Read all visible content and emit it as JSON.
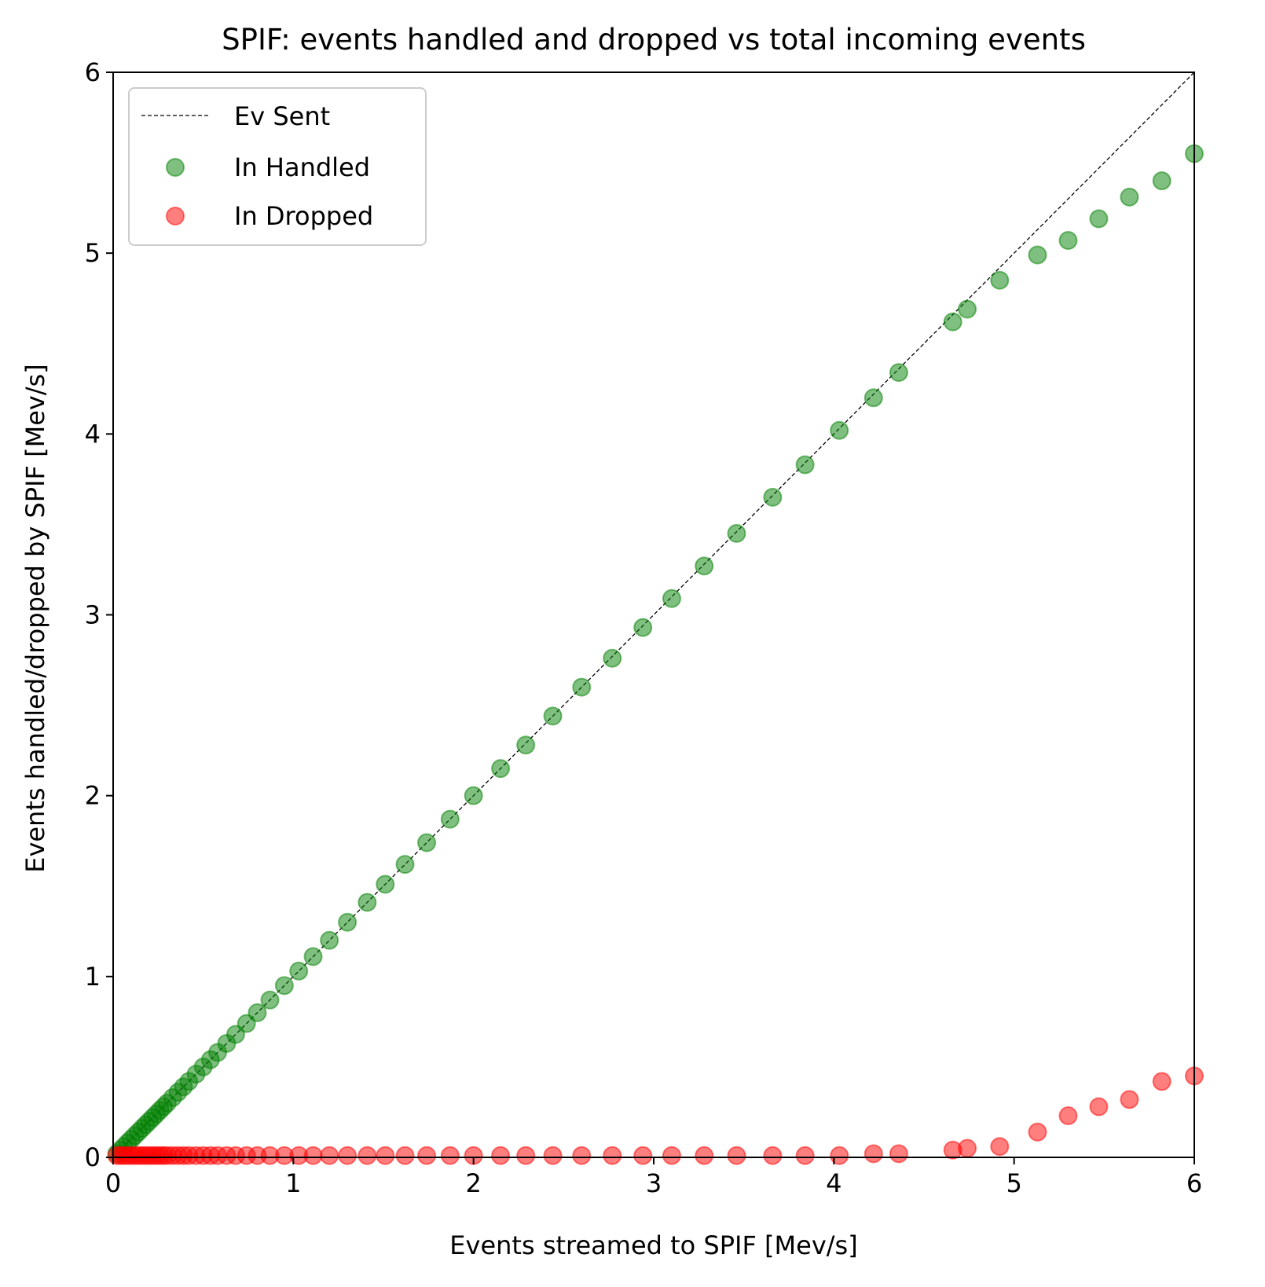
{
  "chart_data": {
    "type": "scatter",
    "title": "SPIF: events handled and dropped vs total incoming events",
    "xlabel": "Events streamed to SPIF [Mev/s]",
    "ylabel": "Events handled/dropped by SPIF [Mev/s]",
    "xlim": [
      0,
      6
    ],
    "ylim": [
      0,
      6
    ],
    "xticks": [
      0,
      1,
      2,
      3,
      4,
      5,
      6
    ],
    "yticks": [
      0,
      1,
      2,
      3,
      4,
      5,
      6
    ],
    "grid": false,
    "legend_position": "upper left",
    "reference_line": {
      "name": "Ev Sent",
      "x": [
        0,
        6
      ],
      "y": [
        0,
        6
      ],
      "style": "dashed",
      "color": "#000000"
    },
    "series": [
      {
        "name": "In Handled",
        "color": "#008000",
        "x": [
          0.02,
          0.04,
          0.06,
          0.08,
          0.1,
          0.12,
          0.14,
          0.16,
          0.18,
          0.2,
          0.22,
          0.24,
          0.26,
          0.28,
          0.3,
          0.33,
          0.36,
          0.39,
          0.42,
          0.46,
          0.5,
          0.54,
          0.58,
          0.63,
          0.68,
          0.74,
          0.8,
          0.87,
          0.95,
          1.03,
          1.11,
          1.2,
          1.3,
          1.41,
          1.51,
          1.62,
          1.74,
          1.87,
          2.0,
          2.15,
          2.29,
          2.44,
          2.6,
          2.77,
          2.94,
          3.1,
          3.28,
          3.46,
          3.66,
          3.84,
          4.03,
          4.22,
          4.36,
          4.66,
          4.74,
          4.92,
          5.13,
          5.3,
          5.47,
          5.64,
          5.82,
          6.0
        ],
        "y": [
          0.02,
          0.04,
          0.06,
          0.08,
          0.1,
          0.12,
          0.14,
          0.16,
          0.18,
          0.2,
          0.22,
          0.24,
          0.26,
          0.28,
          0.3,
          0.33,
          0.36,
          0.39,
          0.42,
          0.46,
          0.5,
          0.54,
          0.58,
          0.63,
          0.68,
          0.74,
          0.8,
          0.87,
          0.95,
          1.03,
          1.11,
          1.2,
          1.3,
          1.41,
          1.51,
          1.62,
          1.74,
          1.87,
          2.0,
          2.15,
          2.28,
          2.44,
          2.6,
          2.76,
          2.93,
          3.09,
          3.27,
          3.45,
          3.65,
          3.83,
          4.02,
          4.2,
          4.34,
          4.62,
          4.69,
          4.85,
          4.99,
          5.07,
          5.19,
          5.31,
          5.4,
          5.55
        ]
      },
      {
        "name": "In Dropped",
        "color": "#ff0000",
        "x": [
          0.02,
          0.04,
          0.06,
          0.08,
          0.1,
          0.12,
          0.14,
          0.16,
          0.18,
          0.2,
          0.22,
          0.24,
          0.26,
          0.28,
          0.3,
          0.33,
          0.36,
          0.39,
          0.42,
          0.46,
          0.5,
          0.54,
          0.58,
          0.63,
          0.68,
          0.74,
          0.8,
          0.87,
          0.95,
          1.03,
          1.11,
          1.2,
          1.3,
          1.41,
          1.51,
          1.62,
          1.74,
          1.87,
          2.0,
          2.15,
          2.29,
          2.44,
          2.6,
          2.77,
          2.94,
          3.1,
          3.28,
          3.46,
          3.66,
          3.84,
          4.03,
          4.22,
          4.36,
          4.66,
          4.74,
          4.92,
          5.13,
          5.3,
          5.47,
          5.64,
          5.82,
          6.0
        ],
        "y": [
          0.01,
          0.01,
          0.01,
          0.01,
          0.01,
          0.01,
          0.01,
          0.01,
          0.01,
          0.01,
          0.01,
          0.01,
          0.01,
          0.01,
          0.01,
          0.01,
          0.01,
          0.01,
          0.01,
          0.01,
          0.01,
          0.01,
          0.01,
          0.01,
          0.01,
          0.01,
          0.01,
          0.01,
          0.01,
          0.01,
          0.01,
          0.01,
          0.01,
          0.01,
          0.01,
          0.01,
          0.01,
          0.01,
          0.01,
          0.01,
          0.01,
          0.01,
          0.01,
          0.01,
          0.01,
          0.01,
          0.01,
          0.01,
          0.01,
          0.01,
          0.01,
          0.02,
          0.02,
          0.04,
          0.05,
          0.06,
          0.14,
          0.23,
          0.28,
          0.32,
          0.42,
          0.45
        ]
      }
    ]
  }
}
